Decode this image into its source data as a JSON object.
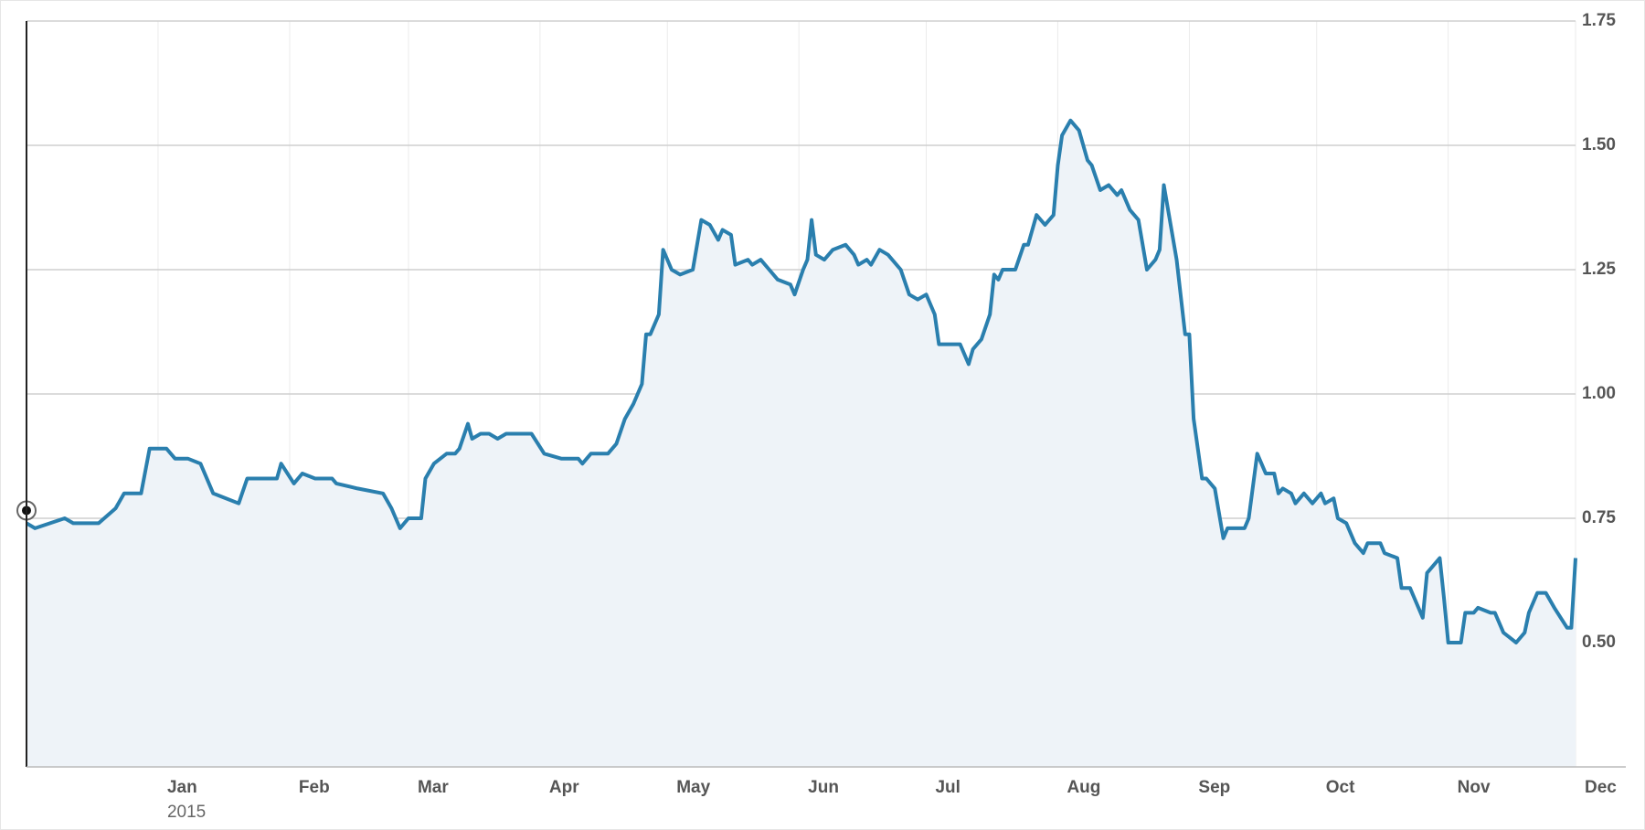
{
  "chart_data": {
    "type": "area",
    "color": "#2a7fae",
    "fill": "#eef3f8",
    "x": [
      0,
      2,
      9,
      11,
      17,
      21,
      23,
      27,
      29,
      33,
      35,
      38,
      41,
      44,
      47,
      50,
      52,
      59,
      60,
      63,
      65,
      68,
      72,
      73,
      78,
      84,
      86,
      88,
      90,
      93,
      94,
      96,
      99,
      101,
      102,
      104,
      105,
      107,
      109,
      111,
      113,
      119,
      122,
      126,
      130,
      131,
      133,
      137,
      139,
      141,
      143,
      145,
      146,
      147,
      149,
      150,
      152,
      154,
      157,
      159,
      161,
      163,
      164,
      166,
      167,
      170,
      171,
      173,
      175,
      177,
      180,
      181,
      183,
      184,
      185,
      186,
      188,
      190,
      193,
      195,
      196,
      198,
      199,
      201,
      203,
      206,
      208,
      210,
      212,
      214,
      215,
      217,
      219,
      220,
      222,
      223,
      225,
      227,
      228,
      229,
      230,
      233,
      235,
      236,
      238,
      240,
      242,
      243,
      244,
      246,
      248,
      250,
      251,
      253,
      255,
      257,
      258,
      260,
      262,
      264,
      266,
      267,
      268,
      271,
      273,
      274,
      275,
      277,
      278,
      280,
      282,
      283,
      287,
      288,
      290,
      292,
      294,
      295,
      296,
      298,
      299,
      301,
      303,
      305,
      306,
      308,
      309,
      311,
      313,
      315,
      316,
      319,
      320,
      323,
      324,
      326,
      327,
      329,
      330,
      331,
      333,
      334,
      335,
      338,
      339,
      341,
      342,
      345,
      346,
      348,
      351,
      353,
      354,
      356,
      358,
      360,
      363,
      364,
      365
    ],
    "values": [
      0.74,
      0.73,
      0.75,
      0.74,
      0.74,
      0.77,
      0.8,
      0.8,
      0.89,
      0.89,
      0.87,
      0.87,
      0.86,
      0.8,
      0.79,
      0.78,
      0.83,
      0.83,
      0.86,
      0.82,
      0.84,
      0.83,
      0.83,
      0.82,
      0.81,
      0.8,
      0.77,
      0.73,
      0.75,
      0.75,
      0.83,
      0.86,
      0.88,
      0.88,
      0.89,
      0.94,
      0.91,
      0.92,
      0.92,
      0.91,
      0.92,
      0.92,
      0.88,
      0.87,
      0.87,
      0.86,
      0.88,
      0.88,
      0.9,
      0.95,
      0.98,
      1.02,
      1.12,
      1.12,
      1.16,
      1.29,
      1.25,
      1.24,
      1.25,
      1.35,
      1.34,
      1.31,
      1.33,
      1.32,
      1.26,
      1.27,
      1.26,
      1.27,
      1.25,
      1.23,
      1.22,
      1.2,
      1.25,
      1.27,
      1.35,
      1.28,
      1.27,
      1.29,
      1.3,
      1.28,
      1.26,
      1.27,
      1.26,
      1.29,
      1.28,
      1.25,
      1.2,
      1.19,
      1.2,
      1.16,
      1.1,
      1.1,
      1.1,
      1.1,
      1.06,
      1.09,
      1.11,
      1.16,
      1.24,
      1.23,
      1.25,
      1.25,
      1.3,
      1.3,
      1.36,
      1.34,
      1.36,
      1.46,
      1.52,
      1.55,
      1.53,
      1.47,
      1.46,
      1.41,
      1.42,
      1.4,
      1.41,
      1.37,
      1.35,
      1.25,
      1.27,
      1.29,
      1.42,
      1.27,
      1.12,
      1.12,
      0.95,
      0.83,
      0.83,
      0.81,
      0.71,
      0.73,
      0.73,
      0.75,
      0.88,
      0.84,
      0.84,
      0.8,
      0.81,
      0.8,
      0.78,
      0.8,
      0.78,
      0.8,
      0.78,
      0.79,
      0.75,
      0.74,
      0.7,
      0.68,
      0.7,
      0.7,
      0.68,
      0.67,
      0.61,
      0.61,
      0.59,
      0.55,
      0.64,
      0.65,
      0.67,
      0.59,
      0.5,
      0.5,
      0.56,
      0.56,
      0.57,
      0.56,
      0.56,
      0.52,
      0.5,
      0.52,
      0.56,
      0.6,
      0.6,
      0.57,
      0.53,
      0.53,
      0.67
    ],
    "xlim": [
      0,
      365
    ],
    "xticks": [
      {
        "value": 31,
        "label": "Jan"
      },
      {
        "value": 62,
        "label": "Feb"
      },
      {
        "value": 90,
        "label": "Mar"
      },
      {
        "value": 121,
        "label": "Apr"
      },
      {
        "value": 151,
        "label": "May"
      },
      {
        "value": 182,
        "label": "Jun"
      },
      {
        "value": 212,
        "label": "Jul"
      },
      {
        "value": 243,
        "label": "Aug"
      },
      {
        "value": 274,
        "label": "Sep"
      },
      {
        "value": 304,
        "label": "Oct"
      },
      {
        "value": 335,
        "label": "Nov"
      },
      {
        "value": 365,
        "label": "Dec"
      }
    ],
    "year_label": "2015",
    "ylim": [
      0.25,
      1.75
    ],
    "yticks": [
      {
        "value": 0.5,
        "label": "0.50"
      },
      0.75,
      {
        "value": 1,
        "label": "1.00"
      },
      1.25,
      {
        "value": 1.5,
        "label": "1.50"
      },
      1.75
    ],
    "grid": true
  }
}
